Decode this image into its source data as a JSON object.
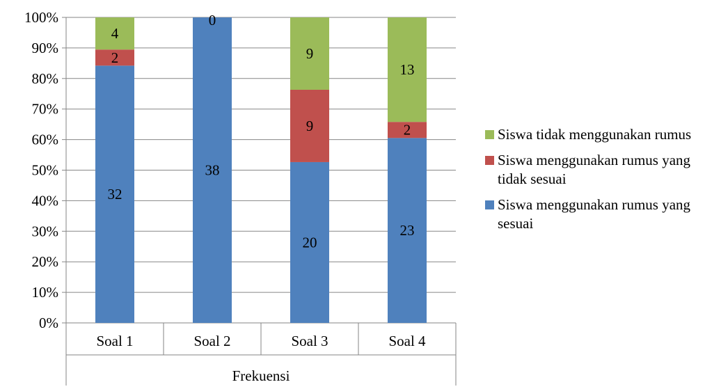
{
  "chart_data": {
    "type": "bar",
    "stacked": "percent",
    "categories": [
      "Soal 1",
      "Soal 2",
      "Soal 3",
      "Soal 4"
    ],
    "category_group_label": "Frekuensi",
    "series": [
      {
        "name": "Siswa menggunakan rumus yang sesuai",
        "color": "#4F81BD",
        "values": [
          32,
          38,
          20,
          23
        ]
      },
      {
        "name": "Siswa menggunakan rumus yang tidak sesuai",
        "color": "#C0504D",
        "values": [
          2,
          0,
          9,
          2
        ]
      },
      {
        "name": "Siswa tidak menggunakan rumus",
        "color": "#9BBB59",
        "values": [
          4,
          0,
          9,
          13
        ]
      }
    ],
    "data_labels": [
      [
        "32",
        "38",
        "20",
        "23"
      ],
      [
        "2",
        "0",
        "9",
        "2"
      ],
      [
        "4",
        "",
        "9",
        "13"
      ]
    ],
    "ylim": [
      0,
      100
    ],
    "yticks": [
      "0%",
      "10%",
      "20%",
      "30%",
      "40%",
      "50%",
      "60%",
      "70%",
      "80%",
      "90%",
      "100%"
    ],
    "grid": true,
    "legend_position": "right"
  }
}
